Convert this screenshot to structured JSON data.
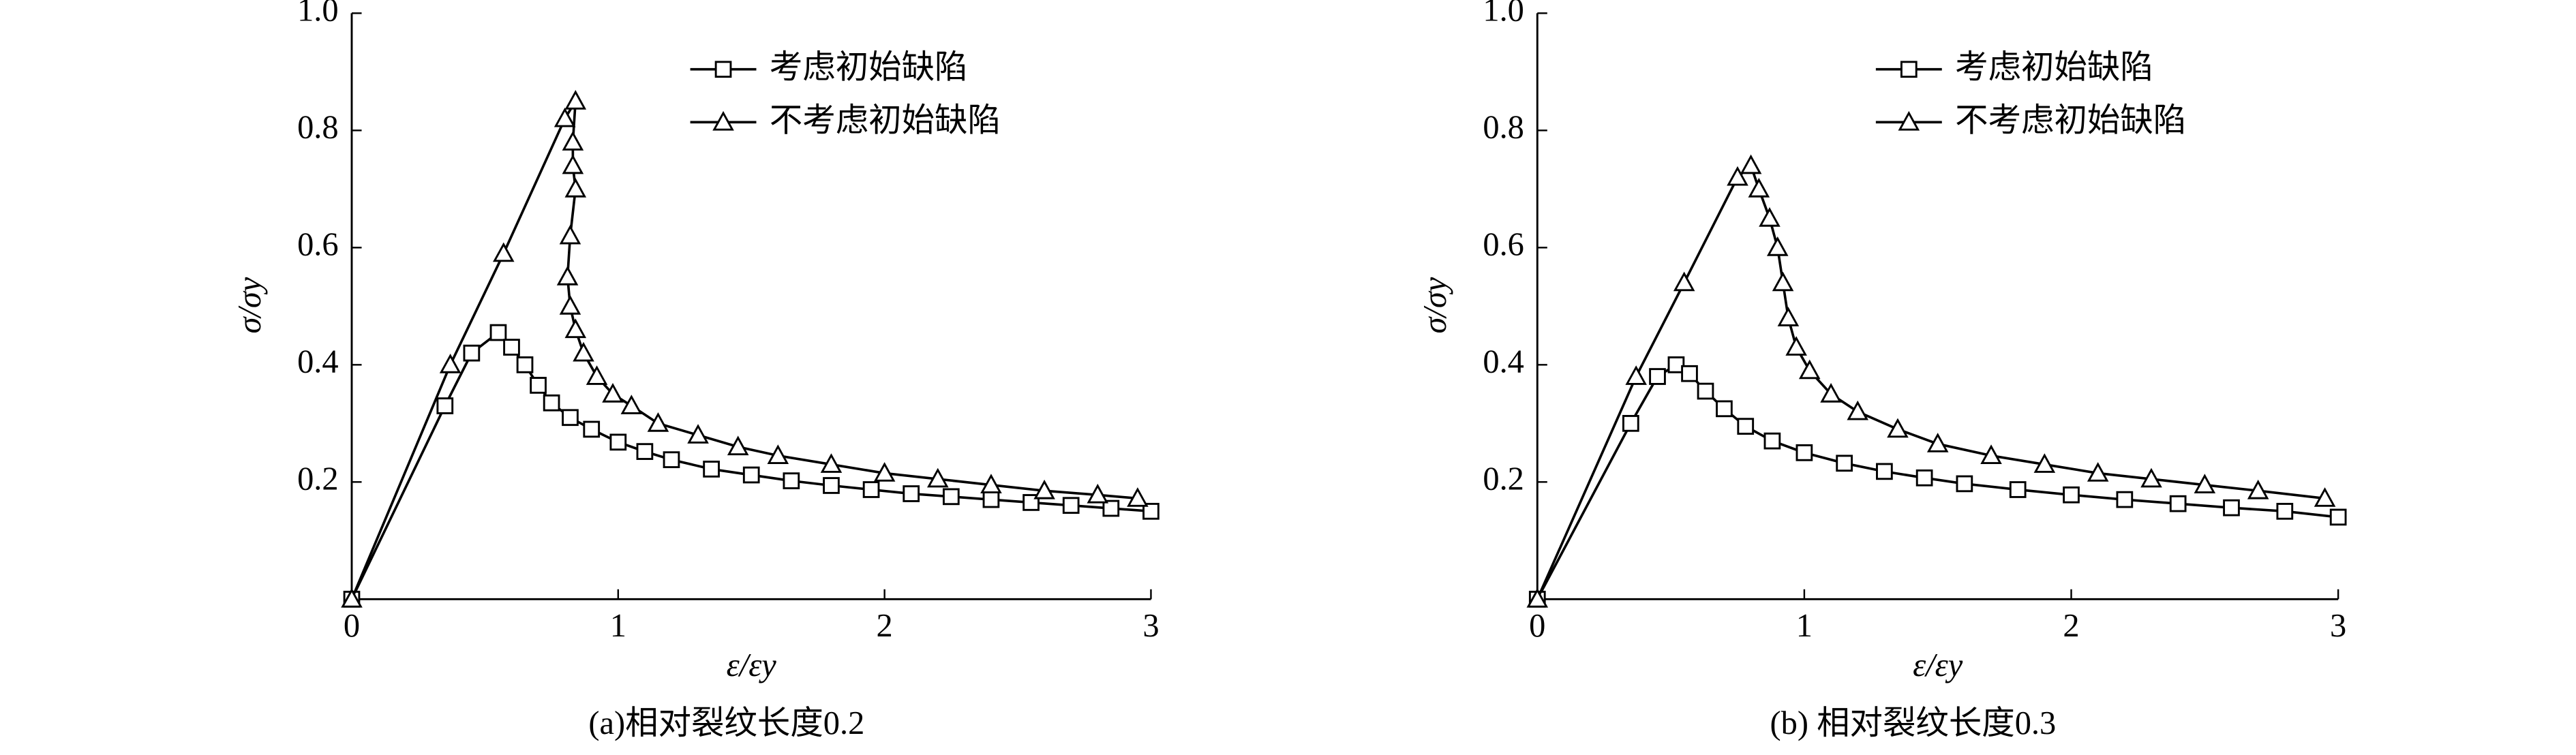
{
  "chart_data": [
    {
      "type": "line",
      "caption": "(a)相对裂纹长度0.2",
      "xlabel": "ε/εy",
      "ylabel": "σ/σy",
      "xlim": [
        0,
        3
      ],
      "ylim": [
        0,
        1
      ],
      "xticks": [
        0,
        1,
        2,
        3
      ],
      "yticks": [
        0.2,
        0.4,
        0.6,
        0.8,
        {
          "value": 1,
          "label": "1.0"
        }
      ],
      "series": [
        {
          "name": "考虑初始缺陷",
          "color": "#000000",
          "marker": "square",
          "x": [
            0,
            0.35,
            0.45,
            0.55,
            0.6,
            0.65,
            0.7,
            0.75,
            0.82,
            0.9,
            1.0,
            1.1,
            1.2,
            1.35,
            1.5,
            1.65,
            1.8,
            1.95,
            2.1,
            2.25,
            2.4,
            2.55,
            2.7,
            2.85,
            3.0
          ],
          "values": [
            0,
            0.33,
            0.42,
            0.455,
            0.43,
            0.4,
            0.365,
            0.335,
            0.31,
            0.29,
            0.268,
            0.252,
            0.238,
            0.222,
            0.212,
            0.202,
            0.194,
            0.187,
            0.18,
            0.175,
            0.17,
            0.165,
            0.16,
            0.155,
            0.15
          ]
        },
        {
          "name": "不考虑初始缺陷",
          "color": "#000000",
          "marker": "triangle",
          "x": [
            0,
            0.37,
            0.57,
            0.8,
            0.84,
            0.83,
            0.83,
            0.84,
            0.82,
            0.81,
            0.82,
            0.84,
            0.87,
            0.92,
            0.98,
            1.05,
            1.15,
            1.3,
            1.45,
            1.6,
            1.8,
            2.0,
            2.2,
            2.4,
            2.6,
            2.8,
            2.95
          ],
          "values": [
            0,
            0.4,
            0.59,
            0.82,
            0.85,
            0.78,
            0.74,
            0.7,
            0.62,
            0.55,
            0.5,
            0.46,
            0.42,
            0.38,
            0.35,
            0.33,
            0.3,
            0.28,
            0.26,
            0.245,
            0.23,
            0.215,
            0.205,
            0.195,
            0.185,
            0.178,
            0.172
          ]
        }
      ]
    },
    {
      "type": "line",
      "caption": "(b) 相对裂纹长度0.3",
      "xlabel": "ε/εy",
      "ylabel": "σ/σy",
      "xlim": [
        0,
        3
      ],
      "ylim": [
        0,
        1
      ],
      "xticks": [
        0,
        1,
        2,
        3
      ],
      "yticks": [
        0.2,
        0.4,
        0.6,
        0.8,
        {
          "value": 1,
          "label": "1.0"
        }
      ],
      "series": [
        {
          "name": "考虑初始缺陷",
          "color": "#000000",
          "marker": "square",
          "x": [
            0,
            0.35,
            0.45,
            0.52,
            0.57,
            0.63,
            0.7,
            0.78,
            0.88,
            1.0,
            1.15,
            1.3,
            1.45,
            1.6,
            1.8,
            2.0,
            2.2,
            2.4,
            2.6,
            2.8,
            3.0
          ],
          "values": [
            0,
            0.3,
            0.38,
            0.4,
            0.385,
            0.355,
            0.325,
            0.295,
            0.27,
            0.25,
            0.232,
            0.218,
            0.207,
            0.197,
            0.187,
            0.178,
            0.17,
            0.163,
            0.156,
            0.15,
            0.14
          ]
        },
        {
          "name": "不考虑初始缺陷",
          "color": "#000000",
          "marker": "triangle",
          "x": [
            0,
            0.37,
            0.55,
            0.75,
            0.8,
            0.83,
            0.87,
            0.9,
            0.92,
            0.94,
            0.97,
            1.02,
            1.1,
            1.2,
            1.35,
            1.5,
            1.7,
            1.9,
            2.1,
            2.3,
            2.5,
            2.7,
            2.95
          ],
          "values": [
            0,
            0.38,
            0.54,
            0.72,
            0.74,
            0.7,
            0.65,
            0.6,
            0.54,
            0.48,
            0.43,
            0.39,
            0.35,
            0.32,
            0.29,
            0.265,
            0.245,
            0.23,
            0.215,
            0.205,
            0.195,
            0.185,
            0.172
          ]
        }
      ]
    }
  ]
}
